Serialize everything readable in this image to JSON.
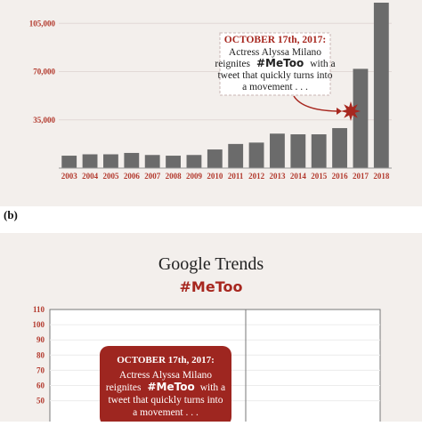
{
  "chart_data": [
    {
      "type": "bar",
      "panel": "",
      "categories": [
        "2003",
        "2004",
        "2005",
        "2006",
        "2007",
        "2008",
        "2009",
        "2010",
        "2011",
        "2012",
        "2013",
        "2014",
        "2015",
        "2016",
        "2017",
        "2018"
      ],
      "values": [
        9000,
        10000,
        10000,
        11000,
        9500,
        9000,
        9500,
        13500,
        17500,
        18500,
        25000,
        24500,
        24500,
        29000,
        72000,
        120000
      ],
      "ylim": [
        0,
        120000
      ],
      "yticks": [
        "35,000",
        "70,000",
        "105,000"
      ],
      "ytick_values": [
        35000,
        70000,
        105000
      ],
      "bar_color": "#6b6b6b",
      "annotation": {
        "heading": "OCTOBER 17th, 2017:",
        "line1": "Actress Alyssa Milano",
        "line2a": "reignites",
        "hashtag": "#MeToo",
        "line2b": "with a",
        "line3": "tweet that quickly turns into",
        "line4": "a movement . . ."
      }
    },
    {
      "type": "line",
      "panel": "(b)",
      "title": "Google Trends",
      "subtitle": "#MeToo",
      "ylim": [
        50,
        110
      ],
      "yticks": [
        "110",
        "100",
        "90",
        "80",
        "70",
        "60",
        "50"
      ],
      "ytick_values": [
        110,
        100,
        90,
        80,
        70,
        60,
        50
      ],
      "annotation": {
        "heading": "OCTOBER 17th, 2017:",
        "line1": "Actress Alyssa Milano",
        "line2a": "reignites",
        "hashtag": "#MeToo",
        "line2b": "with a",
        "line3": "tweet that quickly turns into",
        "line4": "a movement . . ."
      }
    }
  ],
  "colors": {
    "background": "#f3efec",
    "accent_red": "#a7271f",
    "tick_red": "#b33a2e",
    "bar_gray": "#6b6b6b",
    "callout_box": "#9e2620"
  }
}
